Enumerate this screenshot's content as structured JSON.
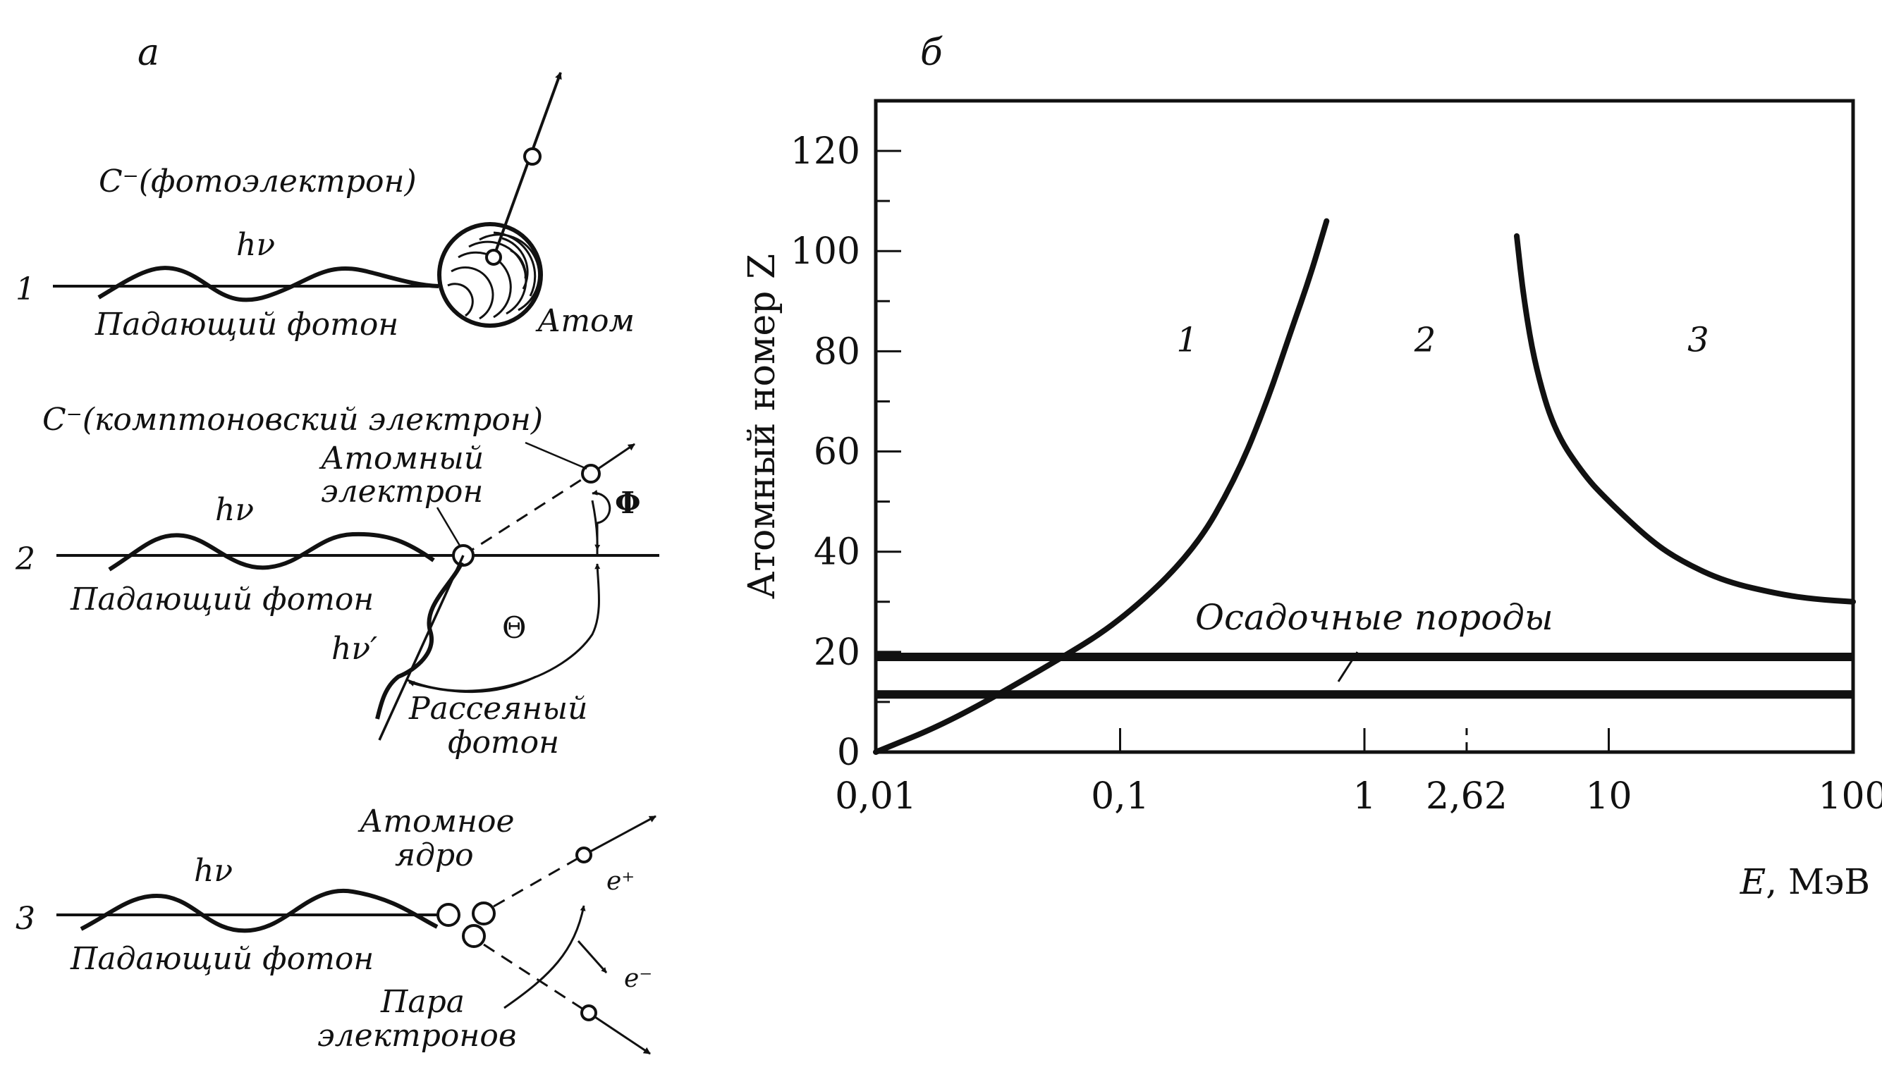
{
  "panel_a": {
    "label": "а",
    "process1": {
      "number": "1",
      "electron_label": "С⁻(фотоэлектрон)",
      "photon_symbol": "hν",
      "photon_label": "Падающий фотон",
      "atom_label": "Атом"
    },
    "process2": {
      "number": "2",
      "electron_label": "С⁻(комптоновский электрон)",
      "atomic_electron_line1": "Атомный",
      "atomic_electron_line2": "электрон",
      "photon_symbol": "hν",
      "photon_label": "Падающий фотон",
      "scattered_symbol": "hν′",
      "phi_symbol": "Φ",
      "theta_symbol": "Θ",
      "scattered_line1": "Рассеяный",
      "scattered_line2": "фотон"
    },
    "process3": {
      "number": "3",
      "nucleus_line1": "Атомное",
      "nucleus_line2": "ядро",
      "photon_symbol": "hν",
      "photon_label": "Падающий фотон",
      "positron_symbol": "e⁺",
      "electron_symbol": "e⁻",
      "pair_line1": "Пара",
      "pair_line2": "электронов"
    }
  },
  "panel_b": {
    "label": "б",
    "region_labels": [
      "1",
      "2",
      "3"
    ],
    "sediment_label": "Осадочные породы"
  },
  "chart_data": {
    "type": "line",
    "title": "",
    "xlabel_var": "E",
    "xlabel_unit": ", МэВ",
    "ylabel": "Атомный номер Z",
    "x_scale": "log",
    "xlim": [
      0.01,
      100
    ],
    "ylim": [
      0,
      130
    ],
    "x_ticks": [
      {
        "value": 0.01,
        "label": "0,01"
      },
      {
        "value": 0.1,
        "label": "0,1"
      },
      {
        "value": 1,
        "label": "1"
      },
      {
        "value": 2.62,
        "label": "2,62"
      },
      {
        "value": 10,
        "label": "10"
      },
      {
        "value": 100,
        "label": "100"
      }
    ],
    "y_ticks": [
      0,
      20,
      40,
      60,
      80,
      100,
      120
    ],
    "series": [
      {
        "x": [
          0.01,
          0.02,
          0.05,
          0.1,
          0.2,
          0.3,
          0.4,
          0.5,
          0.6,
          0.7
        ],
        "y": [
          0,
          6,
          17,
          26,
          40,
          55,
          70,
          84,
          95,
          106
        ]
      },
      {
        "x": [
          4.2,
          4.5,
          5,
          6,
          8,
          10,
          15,
          20,
          30,
          50,
          70,
          100
        ],
        "y": [
          103,
          90,
          77,
          64,
          55,
          50,
          42,
          38,
          34,
          31.5,
          30.5,
          30
        ]
      }
    ],
    "sediment_band": [
      11.5,
      19
    ]
  }
}
